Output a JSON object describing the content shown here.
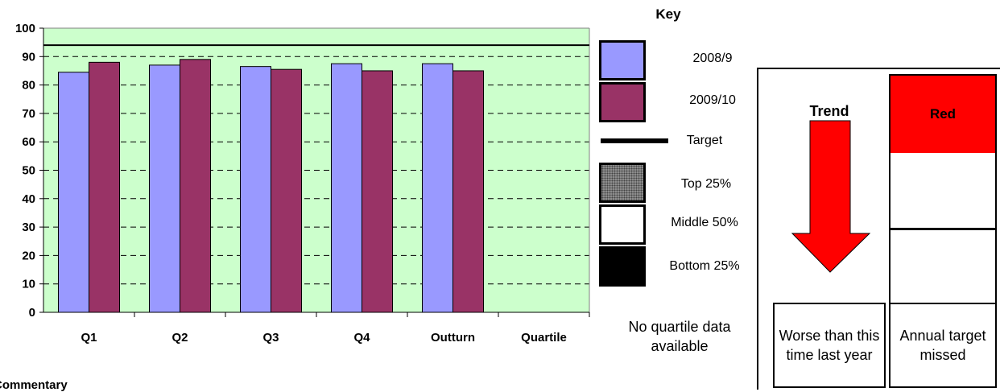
{
  "chart_data": {
    "type": "bar",
    "categories": [
      "Q1",
      "Q2",
      "Q3",
      "Q4",
      "Outturn",
      "Quartile"
    ],
    "series": [
      {
        "name": "2008/9",
        "values": [
          84.5,
          87,
          86.5,
          87.5,
          87.5,
          null
        ],
        "color": "#9999ff"
      },
      {
        "name": "2009/10",
        "values": [
          88,
          89,
          85.5,
          85,
          85,
          null
        ],
        "color": "#993366"
      }
    ],
    "target": 94,
    "ylim": [
      0,
      100
    ],
    "yticks": [
      0,
      10,
      20,
      30,
      40,
      50,
      60,
      70,
      80,
      90,
      100
    ],
    "plot_background": "#ccffcc",
    "grid": "dashed horizontal",
    "xlabel": "",
    "ylabel": ""
  },
  "key": {
    "title": "Key",
    "items": [
      {
        "label": "2008/9",
        "kind": "fill",
        "color": "#9999ff"
      },
      {
        "label": "2009/10",
        "kind": "fill",
        "color": "#993366"
      },
      {
        "label": "Target",
        "kind": "line",
        "color": "#000000"
      },
      {
        "label": "Top 25%",
        "kind": "pattern",
        "color": "#808080"
      },
      {
        "label": "Middle 50%",
        "kind": "fill",
        "color": "#ffffff"
      },
      {
        "label": "Bottom 25%",
        "kind": "fill",
        "color": "#000000"
      }
    ],
    "note": "No quartile data available"
  },
  "trend": {
    "title": "Trend",
    "direction": "down",
    "arrow_color": "#ff0000",
    "caption": "Worse than this time last year"
  },
  "rag": {
    "status": "Red",
    "color": "#ff0000",
    "caption": "Annual target missed"
  },
  "commentary": {
    "title": "Commentary"
  }
}
